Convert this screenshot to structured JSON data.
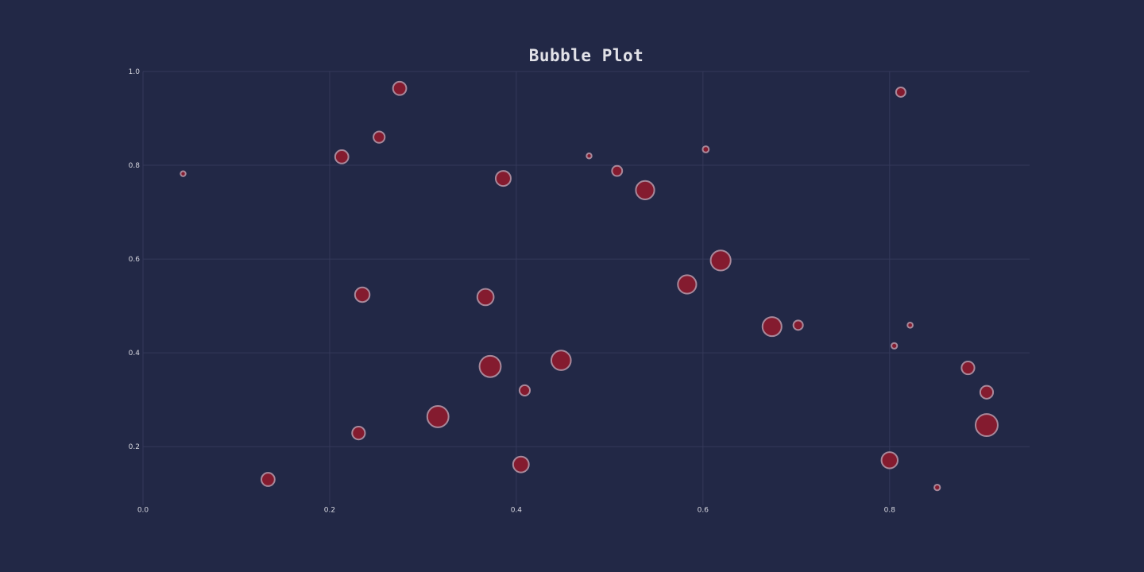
{
  "chart_data": {
    "type": "scatter",
    "title": "Bubble Plot",
    "xlabel": "",
    "ylabel": "",
    "xlim": [
      0.0,
      0.95
    ],
    "ylim": [
      0.075,
      1.0
    ],
    "x_ticks": [
      0.0,
      0.2,
      0.4,
      0.6,
      0.8
    ],
    "y_ticks": [
      0.2,
      0.4,
      0.6,
      0.8,
      1.0
    ],
    "x_tick_labels": [
      "0.0",
      "0.2",
      "0.4",
      "0.6",
      "0.8"
    ],
    "y_tick_labels": [
      "0.2",
      "0.4",
      "0.6",
      "0.8",
      "1.0"
    ],
    "grid": true,
    "bubble_color": "#8a1a2e",
    "bubble_edge_color": "#a8889a",
    "background": "#222846",
    "points": [
      {
        "x": 0.043,
        "y": 0.782,
        "size": 0.05
      },
      {
        "x": 0.134,
        "y": 0.13,
        "size": 0.42
      },
      {
        "x": 0.213,
        "y": 0.818,
        "size": 0.42
      },
      {
        "x": 0.231,
        "y": 0.229,
        "size": 0.4
      },
      {
        "x": 0.235,
        "y": 0.524,
        "size": 0.48
      },
      {
        "x": 0.253,
        "y": 0.86,
        "size": 0.33
      },
      {
        "x": 0.275,
        "y": 0.964,
        "size": 0.42
      },
      {
        "x": 0.316,
        "y": 0.264,
        "size": 0.78
      },
      {
        "x": 0.367,
        "y": 0.519,
        "size": 0.56
      },
      {
        "x": 0.372,
        "y": 0.371,
        "size": 0.78
      },
      {
        "x": 0.386,
        "y": 0.772,
        "size": 0.5
      },
      {
        "x": 0.405,
        "y": 0.162,
        "size": 0.53
      },
      {
        "x": 0.409,
        "y": 0.32,
        "size": 0.29
      },
      {
        "x": 0.448,
        "y": 0.384,
        "size": 0.7
      },
      {
        "x": 0.478,
        "y": 0.82,
        "size": 0.05
      },
      {
        "x": 0.508,
        "y": 0.788,
        "size": 0.28
      },
      {
        "x": 0.538,
        "y": 0.747,
        "size": 0.65
      },
      {
        "x": 0.583,
        "y": 0.546,
        "size": 0.65
      },
      {
        "x": 0.603,
        "y": 0.834,
        "size": 0.1
      },
      {
        "x": 0.619,
        "y": 0.597,
        "size": 0.72
      },
      {
        "x": 0.674,
        "y": 0.456,
        "size": 0.68
      },
      {
        "x": 0.702,
        "y": 0.459,
        "size": 0.25
      },
      {
        "x": 0.8,
        "y": 0.171,
        "size": 0.55
      },
      {
        "x": 0.805,
        "y": 0.415,
        "size": 0.08
      },
      {
        "x": 0.812,
        "y": 0.956,
        "size": 0.25
      },
      {
        "x": 0.822,
        "y": 0.459,
        "size": 0.06
      },
      {
        "x": 0.851,
        "y": 0.113,
        "size": 0.08
      },
      {
        "x": 0.884,
        "y": 0.368,
        "size": 0.4
      },
      {
        "x": 0.904,
        "y": 0.316,
        "size": 0.4
      },
      {
        "x": 0.904,
        "y": 0.246,
        "size": 0.82
      }
    ]
  }
}
